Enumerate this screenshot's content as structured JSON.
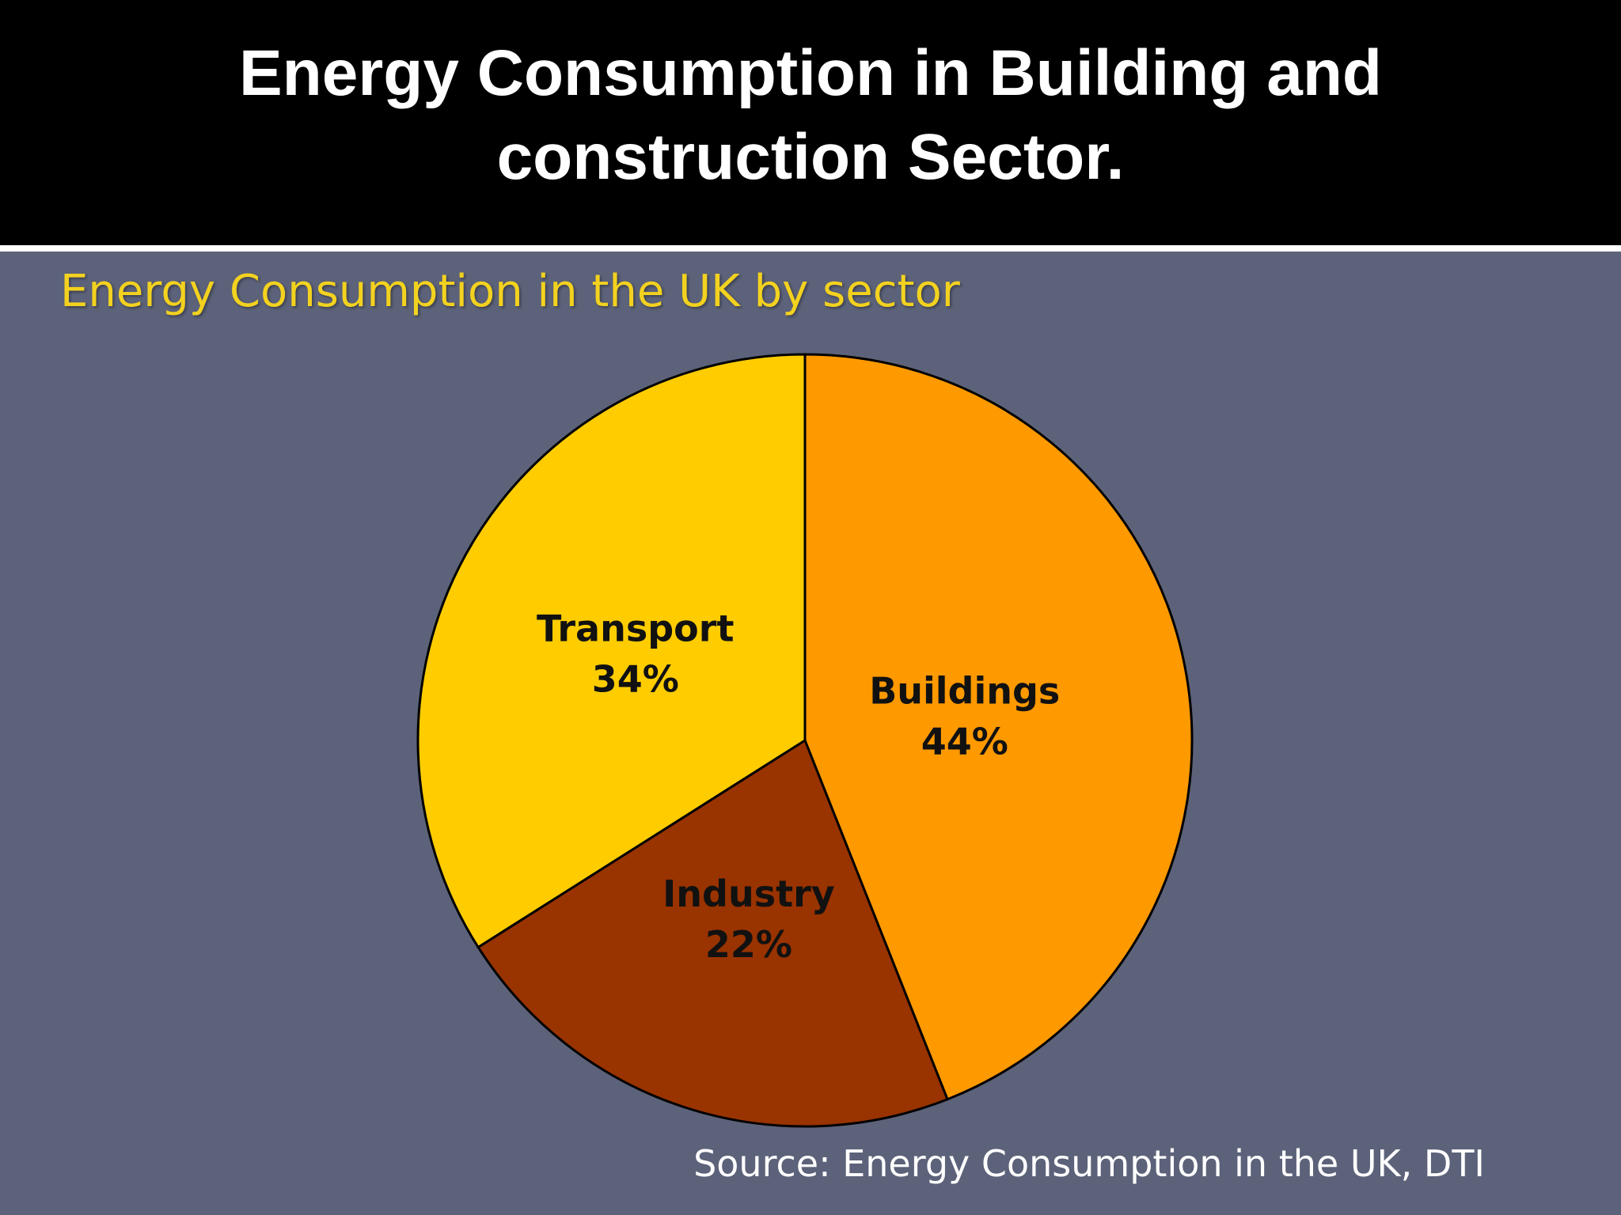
{
  "slide": {
    "title": "Energy Consumption in Building and construction Sector.",
    "source": "Source:  Energy Consumption in the UK, DTI"
  },
  "chart_data": {
    "type": "pie",
    "title": "Energy Consumption in the UK by sector",
    "categories": [
      "Buildings",
      "Industry",
      "Transport"
    ],
    "values": [
      44,
      22,
      34
    ],
    "value_labels": [
      "44%",
      "22%",
      "34%"
    ],
    "colors": [
      "#ff9900",
      "#993300",
      "#ffcc00"
    ],
    "start": "12 o'clock",
    "direction": "clockwise",
    "slice_border": "#000000",
    "legend": "none"
  }
}
